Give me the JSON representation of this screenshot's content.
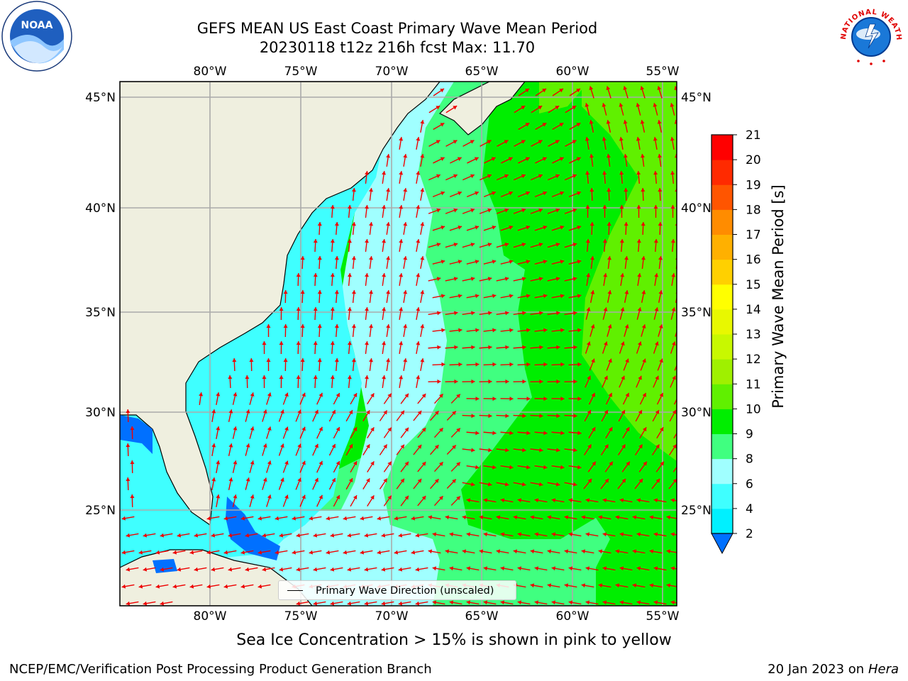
{
  "title": {
    "line1": "GEFS MEAN US East Coast Primary Wave Mean Period",
    "line2": "20230118 t12z 216h fcst   Max: 11.70"
  },
  "map": {
    "lon_ticks": [
      "80°W",
      "75°W",
      "70°W",
      "65°W",
      "60°W",
      "55°W"
    ],
    "lat_ticks": [
      "45°N",
      "40°N",
      "35°N",
      "30°N",
      "25°N"
    ],
    "legend": "Primary Wave Direction (unscaled)",
    "land_color": "#efefdf",
    "arrow_color": "#ee0000"
  },
  "colorbar": {
    "label": "Primary Wave Mean Period [s]",
    "ticks": [
      "2",
      "4",
      "6",
      "8",
      "9",
      "10",
      "11",
      "12",
      "13",
      "14",
      "15",
      "16",
      "17",
      "18",
      "19",
      "20",
      "21"
    ],
    "colors": [
      "#0070ff",
      "#00f0ff",
      "#3fffff",
      "#a0ffff",
      "#40ff80",
      "#00ee00",
      "#60f000",
      "#9ff000",
      "#c8f800",
      "#e8f800",
      "#ffff00",
      "#ffd000",
      "#ffb000",
      "#ff8c00",
      "#ff5500",
      "#ff2a00",
      "#ff0000"
    ]
  },
  "note": "Sea Ice Concentration > 15% is shown in pink to yellow",
  "footer": {
    "left": "NCEP/EMC/Verification Post Processing Product Generation Branch",
    "date": "20 Jan 2023 on ",
    "host": "Hera"
  },
  "logos": {
    "noaa": "NOAA",
    "nws_text": "NATIONAL WEATHER SERVICE"
  }
}
